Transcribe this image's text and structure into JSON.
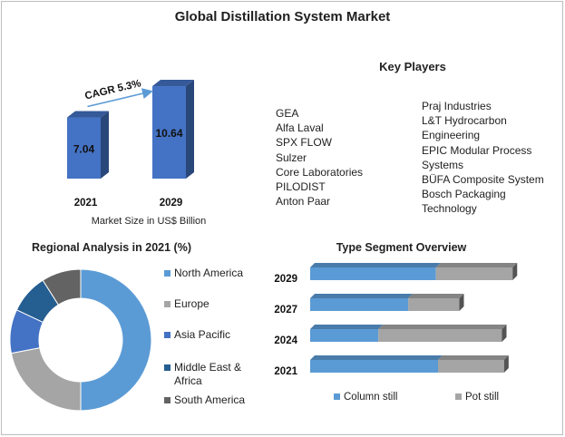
{
  "page_title": "Global Distillation System Market",
  "key_players": {
    "title": "Key Players",
    "column1": [
      "GEA",
      "Alfa Laval",
      "SPX FLOW",
      "Sulzer",
      "Core Laboratories",
      "PILODIST",
      "Anton Paar"
    ],
    "column2": [
      "Praj Industries",
      "L&T Hydrocarbon",
      "Engineering",
      "EPIC Modular Process",
      "Systems",
      "BÜFA Composite System",
      "Bosch Packaging",
      "Technology"
    ]
  },
  "chart_data": [
    {
      "type": "bar",
      "title": "",
      "categories": [
        "2021",
        "2029"
      ],
      "values": [
        7.04,
        10.64
      ],
      "value_labels": [
        "7.04",
        "10.64"
      ],
      "xlabel": "Market Size in US$ Billion",
      "annotation": "CAGR 5.3%",
      "color": "#4472c4",
      "ylim": [
        0,
        12
      ]
    },
    {
      "type": "pie",
      "title": "Regional Analysis in 2021 (%)",
      "donut": true,
      "labels": [
        "North America",
        "Europe",
        "Asia Pacific",
        "Middle East & Africa",
        "South America"
      ],
      "values": [
        50,
        22,
        10,
        9,
        9
      ],
      "colors": [
        "#5b9bd5",
        "#a5a5a5",
        "#4472c4",
        "#255e91",
        "#636363"
      ],
      "legend_position": "right"
    },
    {
      "type": "bar",
      "orientation": "horizontal",
      "stacked": true,
      "title": "Type Segment Overview",
      "categories": [
        "2029",
        "2027",
        "2024",
        "2021"
      ],
      "series": [
        {
          "name": "Column still",
          "values": [
            59,
            46,
            32,
            60
          ],
          "color": "#5b9bd5"
        },
        {
          "name": "Pot still",
          "values": [
            36,
            24,
            58,
            31
          ],
          "color": "#a5a5a5"
        }
      ],
      "legend_position": "bottom"
    }
  ]
}
